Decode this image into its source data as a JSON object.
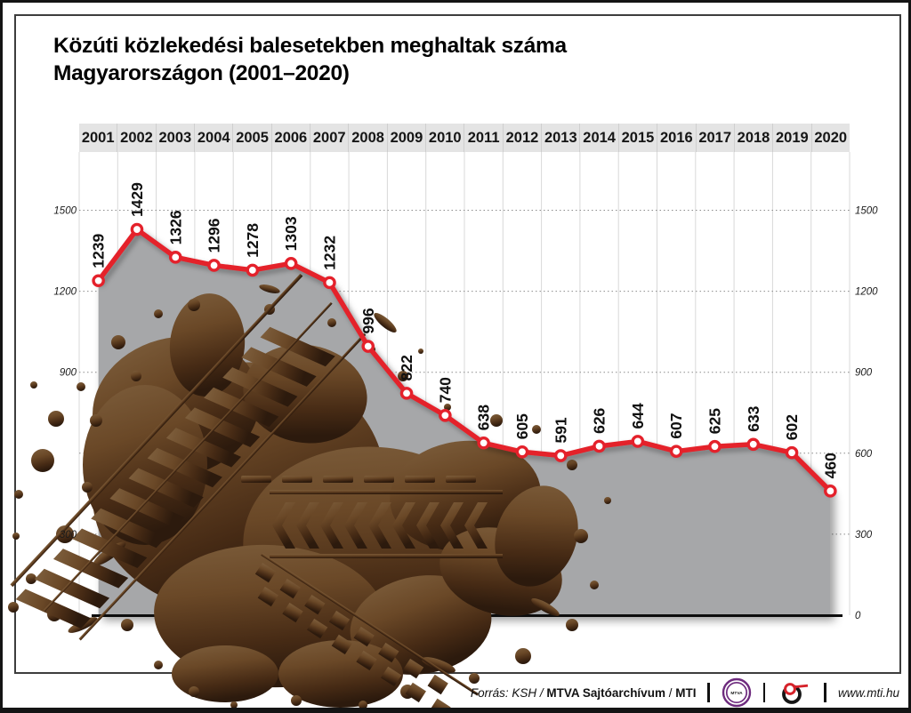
{
  "title": {
    "line1": "Közúti közlekedési balesetekben meghaltak száma",
    "line2": "Magyarországon (2001–2020)"
  },
  "chart_data": {
    "type": "line",
    "title": "Közúti közlekedési balesetekben meghaltak száma Magyarországon (2001–2020)",
    "categories": [
      "2001",
      "2002",
      "2003",
      "2004",
      "2005",
      "2006",
      "2007",
      "2008",
      "2009",
      "2010",
      "2011",
      "2012",
      "2013",
      "2014",
      "2015",
      "2016",
      "2017",
      "2018",
      "2019",
      "2020"
    ],
    "values": [
      1239,
      1429,
      1326,
      1296,
      1278,
      1303,
      1232,
      996,
      822,
      740,
      638,
      605,
      591,
      626,
      644,
      607,
      625,
      633,
      602,
      460
    ],
    "ylim": [
      0,
      1500
    ],
    "gridlines_at": [
      300,
      600,
      900,
      1200,
      1500
    ],
    "yticks_left": [
      1500,
      1200,
      900,
      300
    ],
    "yticks_right": [
      1500,
      1200,
      900,
      600,
      300,
      0
    ],
    "data_labels": true,
    "legend": "none",
    "grid": "vertical solid, horizontal dotted"
  },
  "colors": {
    "line": "#e4212b",
    "marker_fill": "#ffffff",
    "area": "#a6a7a9",
    "band_bg": "#e4e4e4",
    "splatter_brown_light": "#7d5e3c",
    "splatter_brown_dark": "#2c1a0d"
  },
  "footer": {
    "source_prefix": "Forrás: KSH / ",
    "source_bold1": "MTVA Sajtóarchívum",
    "source_mid": " / ",
    "source_bold2": "MTI",
    "mtva_label": "MTVA",
    "website": "www.mti.hu"
  }
}
